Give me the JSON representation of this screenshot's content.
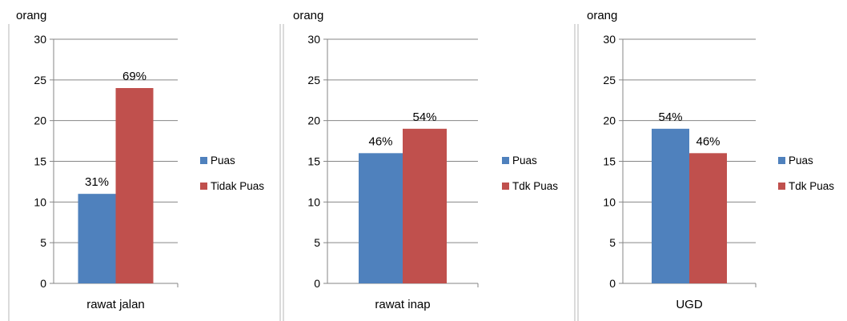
{
  "colors": {
    "series1": "#4f81bd",
    "series2": "#c0504d",
    "grid": "#868686",
    "axis": "#868686"
  },
  "chart_data": [
    {
      "type": "bar",
      "ylabel": "orang",
      "ylim": [
        0,
        30
      ],
      "yticks": [
        0,
        5,
        10,
        15,
        20,
        25,
        30
      ],
      "grid": true,
      "legend_position": "right",
      "categories": [
        "rawat jalan"
      ],
      "series": [
        {
          "name": "Puas",
          "values": [
            11
          ],
          "data_labels": [
            "31%"
          ]
        },
        {
          "name": "Tidak Puas",
          "values": [
            24
          ],
          "data_labels": [
            "69%"
          ]
        }
      ]
    },
    {
      "type": "bar",
      "ylabel": "orang",
      "ylim": [
        0,
        30
      ],
      "yticks": [
        0,
        5,
        10,
        15,
        20,
        25,
        30
      ],
      "grid": true,
      "legend_position": "right",
      "categories": [
        "rawat inap"
      ],
      "series": [
        {
          "name": "Puas",
          "values": [
            16
          ],
          "data_labels": [
            "46%"
          ]
        },
        {
          "name": "Tdk Puas",
          "values": [
            19
          ],
          "data_labels": [
            "54%"
          ]
        }
      ]
    },
    {
      "type": "bar",
      "ylabel": "orang",
      "ylim": [
        0,
        30
      ],
      "yticks": [
        0,
        5,
        10,
        15,
        20,
        25,
        30
      ],
      "grid": true,
      "legend_position": "right",
      "categories": [
        "UGD"
      ],
      "series": [
        {
          "name": "Puas",
          "values": [
            19
          ],
          "data_labels": [
            "54%"
          ]
        },
        {
          "name": "Tdk Puas",
          "values": [
            16
          ],
          "data_labels": [
            "46%"
          ]
        }
      ]
    }
  ]
}
